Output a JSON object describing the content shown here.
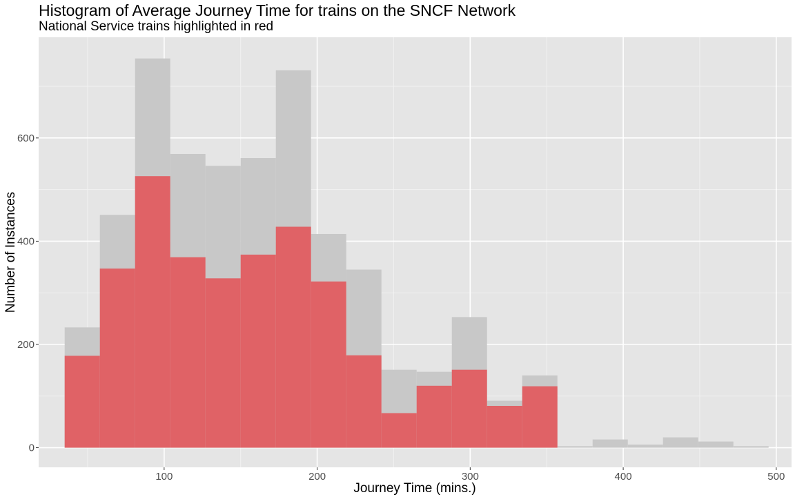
{
  "chart_data": {
    "type": "bar",
    "title": "Histogram of Average Journey Time for trains on the SNCF Network",
    "subtitle": "National Service trains highlighted in red",
    "xlabel": "Journey Time (mins.)",
    "ylabel": "Number of Instances",
    "xlim": [
      18,
      510
    ],
    "ylim": [
      -38,
      795
    ],
    "x_ticks": [
      100,
      200,
      300,
      400,
      500
    ],
    "y_ticks": [
      0,
      200,
      400,
      600
    ],
    "bin_width": 23,
    "bin_starts": [
      35,
      58,
      81,
      104,
      127,
      150,
      173,
      196,
      219,
      242,
      265,
      288,
      311,
      334,
      357,
      380,
      403,
      426,
      449,
      472
    ],
    "series": [
      {
        "name": "",
        "color": "#c8c8c8",
        "values": [
          233,
          451,
          754,
          569,
          546,
          561,
          731,
          414,
          345,
          151,
          147,
          253,
          91,
          140,
          3,
          16,
          6,
          20,
          12,
          3
        ]
      },
      {
        "name": "",
        "color": "#e06266",
        "values": [
          178,
          347,
          526,
          369,
          328,
          374,
          428,
          322,
          179,
          67,
          120,
          151,
          81,
          119,
          0,
          0,
          0,
          0,
          0,
          0
        ]
      }
    ],
    "grid": true,
    "legend": "none"
  }
}
